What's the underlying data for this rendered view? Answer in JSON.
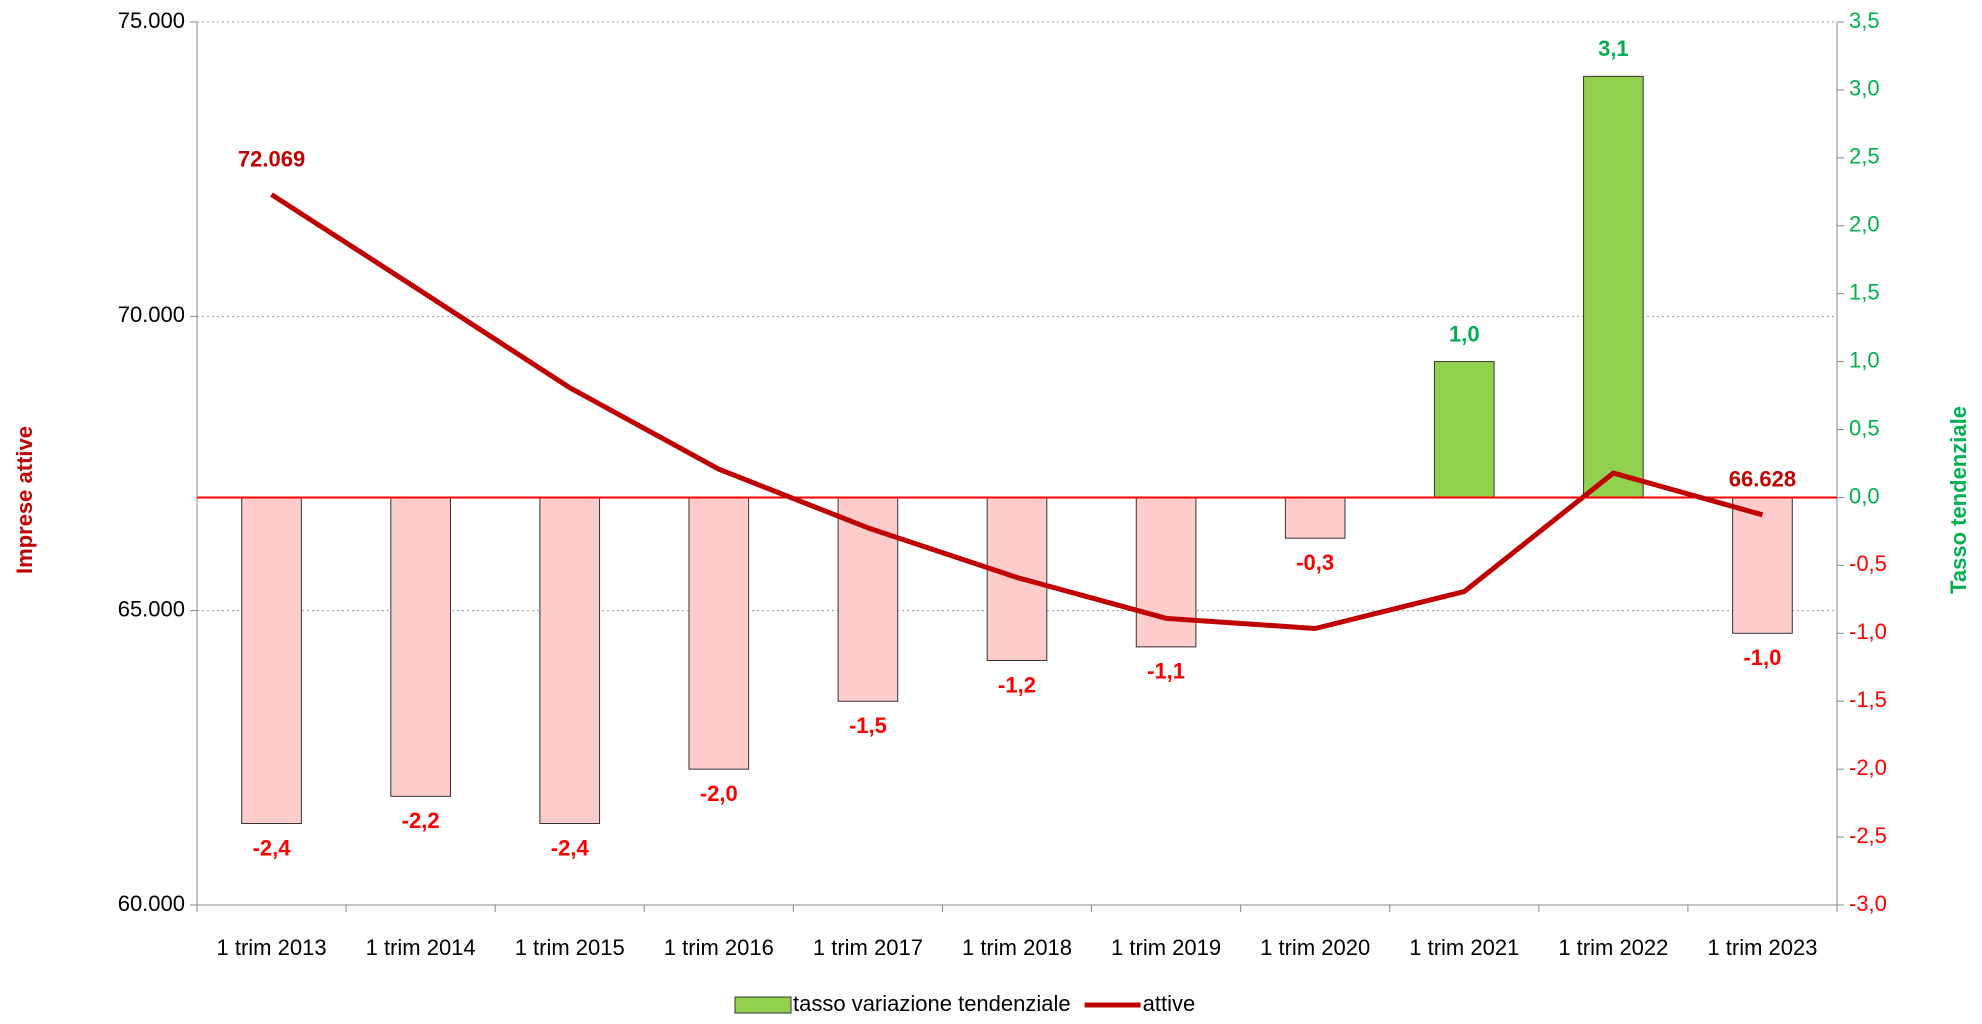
{
  "chart_data": {
    "type": "combo",
    "y_label": "Imprese attive",
    "y2_label": "Tasso tendenziale",
    "categories": [
      "1 trim 2013",
      "1 trim 2014",
      "1 trim 2015",
      "1 trim 2016",
      "1 trim 2017",
      "1 trim 2018",
      "1 trim 2019",
      "1 trim 2020",
      "1 trim 2021",
      "1 trim 2022",
      "1 trim 2023"
    ],
    "series": [
      {
        "name": "tasso variazione tendenziale",
        "type": "bar",
        "axis": "y2",
        "color": "#92d050",
        "negative_color": "#ffcccc",
        "label_color": "#00b050",
        "negative_label_color": "#ff0000",
        "values": [
          -2.4,
          -2.2,
          -2.4,
          -2.0,
          -1.5,
          -1.2,
          -1.1,
          -0.3,
          1.0,
          3.1,
          -1.0
        ],
        "value_labels": [
          "-2,4",
          "-2,2",
          "-2,4",
          "-2,0",
          "-1,5",
          "-1,2",
          "-1,1",
          "-0,3",
          "1,0",
          "3,1",
          "-1,0"
        ]
      },
      {
        "name": "attive",
        "type": "line",
        "color": "#c00000",
        "values": [
          72069,
          70433,
          68788,
          67403,
          66407,
          65563,
          64870,
          64697,
          65325,
          67338,
          66628
        ],
        "value_labels": [
          "72.069",
          null,
          null,
          null,
          null,
          null,
          null,
          null,
          null,
          null,
          "66.628"
        ]
      }
    ],
    "ylim": [
      60000,
      75000
    ],
    "yticks": [
      {
        "value": 60000,
        "label": "60.000"
      },
      {
        "value": 65000,
        "label": "65.000"
      },
      {
        "value": 70000,
        "label": "70.000"
      },
      {
        "value": 75000,
        "label": "75.000"
      }
    ],
    "y2lim": [
      -3.0,
      3.5
    ],
    "y2ticks": [
      {
        "value": -3.0,
        "label": "-3,0"
      },
      {
        "value": -2.5,
        "label": "-2,5"
      },
      {
        "value": -2.0,
        "label": "-2,0"
      },
      {
        "value": -1.5,
        "label": "-1,5"
      },
      {
        "value": -1.0,
        "label": "-1,0"
      },
      {
        "value": -0.5,
        "label": "-0,5"
      },
      {
        "value": 0.0,
        "label": "0,0"
      },
      {
        "value": 0.5,
        "label": "0,5"
      },
      {
        "value": 1.0,
        "label": "1,0"
      },
      {
        "value": 1.5,
        "label": "1,5"
      },
      {
        "value": 2.0,
        "label": "2,0"
      },
      {
        "value": 2.5,
        "label": "2,5"
      },
      {
        "value": 3.0,
        "label": "3,0"
      },
      {
        "value": 3.5,
        "label": "3,5"
      }
    ],
    "grid": true,
    "legend": "bottom"
  }
}
